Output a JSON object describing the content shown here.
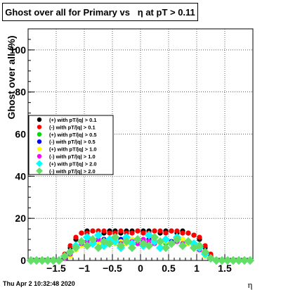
{
  "chart_data": {
    "type": "scatter",
    "title": "Ghost over all for Primary vs   η at pT > 0.11",
    "xlabel": "η",
    "ylabel": "Ghost over all (%)",
    "xlim": [
      -2.0,
      2.0
    ],
    "ylim": [
      0,
      110
    ],
    "xticks": [
      -1.5,
      -1,
      -0.5,
      0,
      0.5,
      1,
      1.5
    ],
    "xtick_labels": [
      "−1.5",
      "−1",
      "−0.5",
      "0",
      "0.5",
      "1",
      "1.5"
    ],
    "yticks": [
      0,
      20,
      40,
      60,
      80,
      100
    ],
    "ytick_labels": [
      "0",
      "20",
      "40",
      "60",
      "80",
      "100"
    ],
    "grid": true,
    "legend_position": "middle-left",
    "x": [
      -1.95,
      -1.85,
      -1.75,
      -1.65,
      -1.55,
      -1.45,
      -1.35,
      -1.25,
      -1.15,
      -1.05,
      -0.95,
      -0.85,
      -0.75,
      -0.65,
      -0.55,
      -0.45,
      -0.35,
      -0.25,
      -0.15,
      -0.05,
      0.05,
      0.15,
      0.25,
      0.35,
      0.45,
      0.55,
      0.65,
      0.75,
      0.85,
      0.95,
      1.05,
      1.15,
      1.25,
      1.35,
      1.45,
      1.55,
      1.65,
      1.75,
      1.85,
      1.95
    ],
    "series": [
      {
        "name": "(+) with pT/|q| > 0.1",
        "color": "#000000",
        "marker": "circle",
        "values": [
          0,
          0,
          0,
          0,
          0,
          0,
          2,
          6,
          10,
          13,
          14,
          14,
          14,
          13,
          14,
          14,
          13,
          14,
          14,
          14,
          14,
          14,
          14,
          13,
          14,
          14,
          13,
          14,
          13,
          12,
          10,
          6,
          2,
          0,
          0,
          0,
          0,
          0,
          0,
          0
        ]
      },
      {
        "name": "(-) with pT/|q| > 0.1",
        "color": "#ff0000",
        "marker": "circle",
        "values": [
          0,
          0,
          0,
          0,
          0,
          0,
          3,
          7,
          11,
          13,
          13,
          14,
          14,
          14,
          13,
          13,
          14,
          13,
          13,
          14,
          13,
          13,
          14,
          14,
          13,
          14,
          14,
          13,
          13,
          12,
          11,
          7,
          3,
          0,
          0,
          0,
          0,
          0,
          0,
          0
        ]
      },
      {
        "name": "(+) with pT/|q| > 0.5",
        "color": "#00dd00",
        "marker": "circle",
        "values": [
          0,
          0,
          0,
          0,
          0,
          0,
          1,
          3,
          6,
          8,
          8,
          9,
          8,
          8,
          9,
          8,
          8,
          9,
          8,
          8,
          9,
          8,
          8,
          9,
          8,
          8,
          9,
          8,
          8,
          7,
          6,
          3,
          1,
          0,
          0,
          0,
          0,
          0,
          0,
          0
        ]
      },
      {
        "name": "(-) with pT/|q| > 0.5",
        "color": "#0000ff",
        "marker": "circle",
        "values": [
          0,
          0,
          0,
          0,
          0,
          0,
          1,
          3,
          7,
          9,
          9,
          10,
          9,
          10,
          9,
          9,
          10,
          9,
          10,
          9,
          9,
          10,
          9,
          9,
          10,
          9,
          9,
          10,
          9,
          8,
          6,
          3,
          1,
          0,
          0,
          0,
          0,
          0,
          0,
          0
        ]
      },
      {
        "name": "(+) with pT/|q| > 1.0",
        "color": "#ffff00",
        "marker": "circle",
        "values": [
          0,
          0,
          0,
          0,
          0,
          0,
          1,
          2,
          5,
          7,
          8,
          9,
          8,
          9,
          10,
          8,
          9,
          8,
          10,
          9,
          8,
          9,
          10,
          8,
          9,
          8,
          9,
          10,
          8,
          7,
          5,
          2,
          1,
          0,
          0,
          0,
          0,
          0,
          0,
          0
        ]
      },
      {
        "name": "(-) with pT/|q| > 1.0",
        "color": "#ff00ff",
        "marker": "circle",
        "values": [
          0,
          0,
          0,
          0,
          0,
          0,
          1,
          3,
          6,
          8,
          9,
          8,
          10,
          8,
          9,
          9,
          8,
          10,
          9,
          8,
          10,
          9,
          8,
          9,
          10,
          8,
          9,
          8,
          9,
          7,
          5,
          3,
          1,
          0,
          0,
          0,
          0,
          0,
          0,
          0
        ]
      },
      {
        "name": "(+) with pT/|q| > 2.0",
        "color": "#00ffff",
        "marker": "diamond",
        "values": [
          0,
          0,
          0,
          0,
          0,
          0,
          2,
          4,
          7,
          9,
          11,
          8,
          12,
          7,
          10,
          9,
          6,
          11,
          8,
          10,
          7,
          12,
          9,
          6,
          10,
          8,
          11,
          7,
          9,
          8,
          6,
          3,
          1,
          0,
          0,
          0,
          0,
          0,
          0,
          0
        ]
      },
      {
        "name": "(-) with pT/|q| > 2.0",
        "color": "#66dd66",
        "marker": "diamond",
        "values": [
          0,
          0,
          0,
          0,
          0,
          0,
          2,
          4,
          6,
          9,
          7,
          10,
          6,
          9,
          8,
          11,
          7,
          9,
          6,
          10,
          8,
          7,
          11,
          9,
          6,
          8,
          10,
          7,
          9,
          6,
          7,
          4,
          1,
          0,
          0,
          0,
          0,
          0,
          0,
          0
        ]
      }
    ]
  },
  "footer": {
    "timestamp": "Thu Apr  2 10:32:48 2020"
  }
}
